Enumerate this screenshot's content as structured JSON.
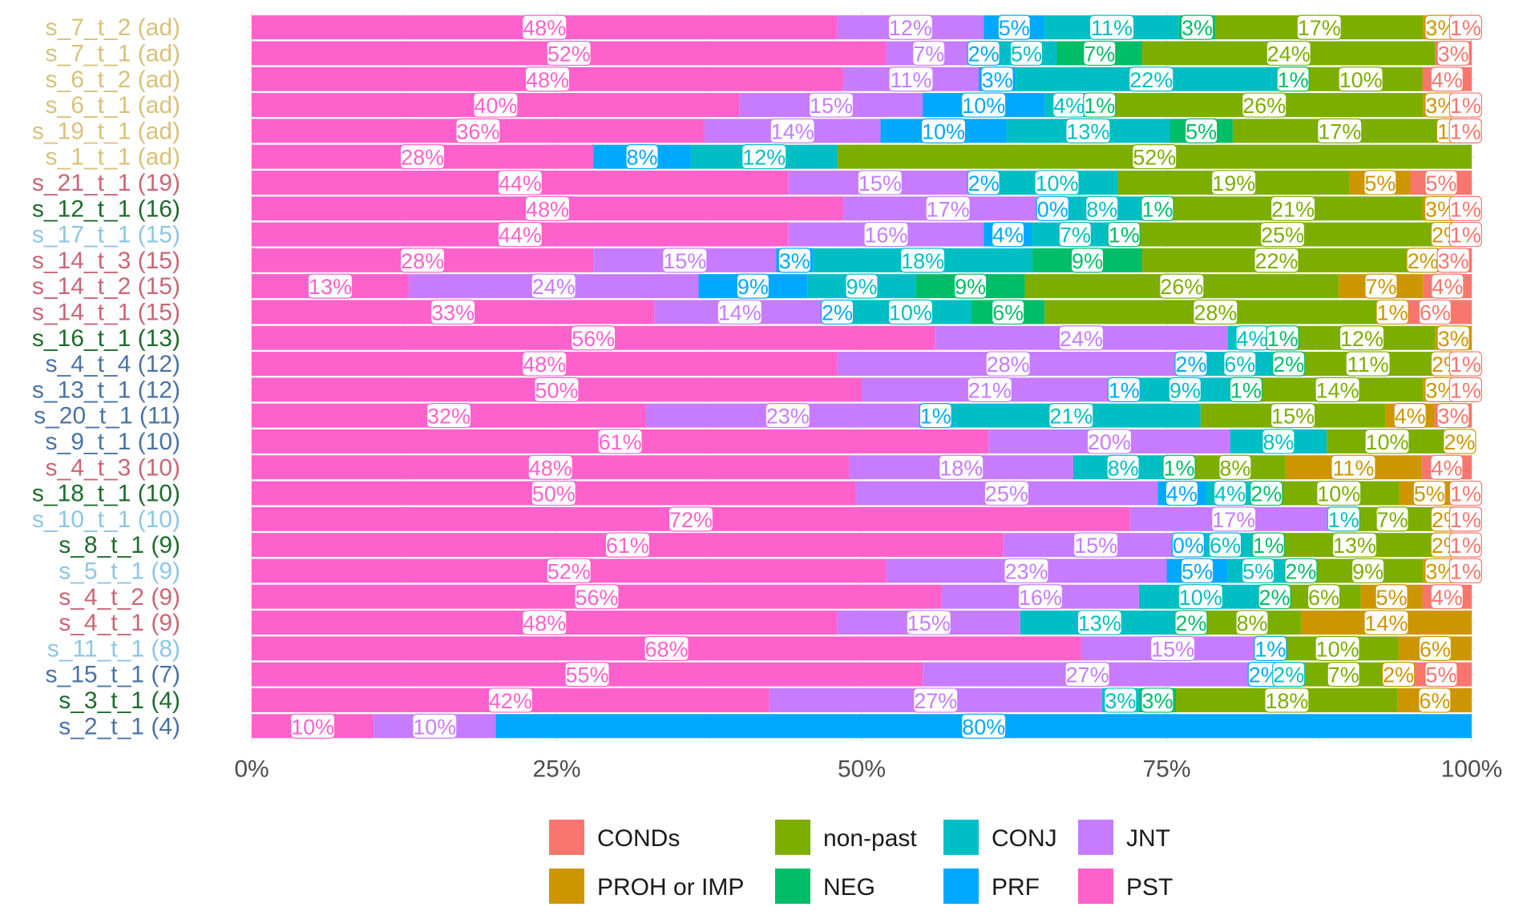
{
  "chart_data": {
    "type": "bar",
    "orientation": "horizontal",
    "stacked": true,
    "percent": true,
    "title": "",
    "xlabel": "",
    "ylabel": "",
    "xlim": [
      0,
      100
    ],
    "x_ticks": [
      "0%",
      "25%",
      "50%",
      "75%",
      "100%"
    ],
    "grid": true,
    "legend_position": "bottom",
    "series_order": [
      "PST",
      "JNT",
      "PRF",
      "CONJ",
      "NEG",
      "non-past",
      "PROH or IMP",
      "CONDs"
    ],
    "legend": [
      {
        "name": "CONDs",
        "color": "#F8766D"
      },
      {
        "name": "non-past",
        "color": "#7CAE00"
      },
      {
        "name": "CONJ",
        "color": "#00BFC4"
      },
      {
        "name": "JNT",
        "color": "#C77CFF"
      },
      {
        "name": "PROH or IMP",
        "color": "#CD9600"
      },
      {
        "name": "NEG",
        "color": "#00BE67"
      },
      {
        "name": "PRF",
        "color": "#00A9FF"
      },
      {
        "name": "PST",
        "color": "#FF61CC"
      }
    ],
    "series_colors": {
      "PST": "#FF61CC",
      "JNT": "#C77CFF",
      "PRF": "#00A9FF",
      "CONJ": "#00BFC4",
      "NEG": "#00BE67",
      "non-past": "#7CAE00",
      "PROH or IMP": "#CD9600",
      "CONDs": "#F8766D"
    },
    "category_colors": {
      "gold": "#D8C27A",
      "red": "#C96676",
      "green": "#1E6B2E",
      "lightblue": "#8DC6E6",
      "blue": "#4A73A6"
    },
    "rows": [
      {
        "label": "s_7_t_2 (ad)",
        "color": "gold",
        "values": [
          48,
          12,
          5,
          11,
          3,
          17,
          3,
          1
        ],
        "labels": [
          "48%",
          "12%",
          "5%",
          "11%",
          "3%",
          "17%",
          "3%",
          "1%"
        ]
      },
      {
        "label": "s_7_t_1 (ad)",
        "color": "gold",
        "values": [
          52,
          7,
          2,
          5,
          7,
          24,
          0,
          3
        ],
        "labels": [
          "52%",
          "7%",
          "2%",
          "5%",
          "7%",
          "24%",
          "",
          "3%"
        ]
      },
      {
        "label": "s_6_t_2 (ad)",
        "color": "gold",
        "values": [
          48,
          11,
          3,
          22,
          1,
          10,
          0,
          4
        ],
        "labels": [
          "48%",
          "11%",
          "3%",
          "22%",
          "1%",
          "10%",
          "",
          "4%"
        ]
      },
      {
        "label": "s_6_t_1 (ad)",
        "color": "gold",
        "values": [
          40,
          15,
          10,
          4,
          1,
          26,
          3,
          1
        ],
        "labels": [
          "40%",
          "15%",
          "10%",
          "4%",
          "1%",
          "26%",
          "3%",
          "1%"
        ]
      },
      {
        "label": "s_19_t_1 (ad)",
        "color": "gold",
        "values": [
          36,
          14,
          10,
          13,
          5,
          17,
          1,
          1
        ],
        "labels": [
          "36%",
          "14%",
          "10%",
          "13%",
          "5%",
          "17%",
          "1%",
          "1%"
        ]
      },
      {
        "label": "s_1_t_1 (ad)",
        "color": "gold",
        "values": [
          28,
          0,
          8,
          12,
          0,
          52,
          0,
          0
        ],
        "labels": [
          "28%",
          "",
          "8%",
          "12%",
          "",
          "52%",
          "",
          ""
        ]
      },
      {
        "label": "s_21_t_1 (19)",
        "color": "red",
        "values": [
          44,
          15,
          2,
          10,
          0,
          19,
          5,
          5
        ],
        "labels": [
          "44%",
          "15%",
          "2%",
          "10%",
          "",
          "19%",
          "5%",
          "5%"
        ]
      },
      {
        "label": "s_12_t_1 (16)",
        "color": "green",
        "values": [
          48,
          17,
          0,
          8,
          1,
          21,
          3,
          1
        ],
        "labels": [
          "48%",
          "17%",
          "0%",
          "8%",
          "1%",
          "21%",
          "3%",
          "1%"
        ]
      },
      {
        "label": "s_17_t_1 (15)",
        "color": "lightblue",
        "values": [
          44,
          16,
          4,
          7,
          1,
          25,
          2,
          1
        ],
        "labels": [
          "44%",
          "16%",
          "4%",
          "7%",
          "1%",
          "25%",
          "2%",
          "1%"
        ]
      },
      {
        "label": "s_14_t_3 (15)",
        "color": "red",
        "values": [
          28,
          15,
          3,
          18,
          9,
          22,
          2,
          3
        ],
        "labels": [
          "28%",
          "15%",
          "3%",
          "18%",
          "9%",
          "22%",
          "2%",
          "3%"
        ]
      },
      {
        "label": "s_14_t_2 (15)",
        "color": "red",
        "values": [
          13,
          24,
          9,
          9,
          9,
          26,
          7,
          4
        ],
        "labels": [
          "13%",
          "24%",
          "9%",
          "9%",
          "9%",
          "26%",
          "7%",
          "4%"
        ]
      },
      {
        "label": "s_14_t_1 (15)",
        "color": "red",
        "values": [
          33,
          14,
          2,
          10,
          6,
          28,
          1,
          6
        ],
        "labels": [
          "33%",
          "14%",
          "2%",
          "10%",
          "6%",
          "28%",
          "1%",
          "6%"
        ]
      },
      {
        "label": "s_16_t_1 (13)",
        "color": "green",
        "values": [
          56,
          24,
          0,
          4,
          1,
          12,
          3,
          0
        ],
        "labels": [
          "56%",
          "24%",
          "",
          "4%",
          "1%",
          "12%",
          "3%",
          ""
        ]
      },
      {
        "label": "s_4_t_4 (12)",
        "color": "blue",
        "values": [
          48,
          28,
          2,
          6,
          2,
          11,
          2,
          1
        ],
        "labels": [
          "48%",
          "28%",
          "2%",
          "6%",
          "2%",
          "11%",
          "2%",
          "1%"
        ]
      },
      {
        "label": "s_13_t_1 (12)",
        "color": "blue",
        "values": [
          50,
          21,
          1,
          9,
          1,
          14,
          3,
          1
        ],
        "labels": [
          "50%",
          "21%",
          "1%",
          "9%",
          "1%",
          "14%",
          "3%",
          "1%"
        ]
      },
      {
        "label": "s_20_t_1 (11)",
        "color": "blue",
        "values": [
          32,
          23,
          1,
          21,
          0,
          15,
          4,
          3
        ],
        "labels": [
          "32%",
          "23%",
          "1%",
          "21%",
          "",
          "15%",
          "4%",
          "3%"
        ]
      },
      {
        "label": "s_9_t_1 (10)",
        "color": "blue",
        "values": [
          61,
          20,
          0,
          8,
          0,
          10,
          2,
          0
        ],
        "labels": [
          "61%",
          "20%",
          "",
          "8%",
          "",
          "10%",
          "2%",
          ""
        ]
      },
      {
        "label": "s_4_t_3 (10)",
        "color": "red",
        "values": [
          48,
          18,
          0,
          8,
          1,
          8,
          11,
          4
        ],
        "labels": [
          "48%",
          "18%",
          "",
          "8%",
          "1%",
          "8%",
          "11%",
          "4%"
        ]
      },
      {
        "label": "s_18_t_1 (10)",
        "color": "green",
        "values": [
          50,
          25,
          4,
          4,
          2,
          10,
          5,
          1
        ],
        "labels": [
          "50%",
          "25%",
          "4%",
          "4%",
          "2%",
          "10%",
          "5%",
          "1%"
        ]
      },
      {
        "label": "s_10_t_1 (10)",
        "color": "lightblue",
        "values": [
          72,
          17,
          0,
          1,
          0,
          7,
          2,
          1
        ],
        "labels": [
          "72%",
          "17%",
          "",
          "1%",
          "",
          "7%",
          "2%",
          "1%"
        ]
      },
      {
        "label": "s_8_t_1 (9)",
        "color": "green",
        "values": [
          61,
          15,
          0,
          6,
          1,
          13,
          2,
          1
        ],
        "labels": [
          "61%",
          "15%",
          "0%",
          "6%",
          "1%",
          "13%",
          "2%",
          "1%"
        ]
      },
      {
        "label": "s_5_t_1 (9)",
        "color": "lightblue",
        "values": [
          52,
          23,
          5,
          5,
          2,
          9,
          3,
          1
        ],
        "labels": [
          "52%",
          "23%",
          "5%",
          "5%",
          "2%",
          "9%",
          "3%",
          "1%"
        ]
      },
      {
        "label": "s_4_t_2 (9)",
        "color": "red",
        "values": [
          56,
          16,
          0,
          10,
          2,
          6,
          5,
          4
        ],
        "labels": [
          "56%",
          "16%",
          "",
          "10%",
          "2%",
          "6%",
          "5%",
          "4%"
        ]
      },
      {
        "label": "s_4_t_1 (9)",
        "color": "red",
        "values": [
          48,
          15,
          0,
          13,
          2,
          8,
          14,
          0
        ],
        "labels": [
          "48%",
          "15%",
          "",
          "13%",
          "2%",
          "8%",
          "14%",
          ""
        ]
      },
      {
        "label": "s_11_t_1 (8)",
        "color": "lightblue",
        "values": [
          68,
          15,
          1,
          0,
          0,
          10,
          6,
          0
        ],
        "labels": [
          "68%",
          "15%",
          "1%",
          "",
          "",
          "10%",
          "6%",
          ""
        ]
      },
      {
        "label": "s_15_t_1 (7)",
        "color": "blue",
        "values": [
          55,
          27,
          2,
          2,
          0,
          7,
          2,
          5
        ],
        "labels": [
          "55%",
          "27%",
          "2%",
          "2%",
          "",
          "7%",
          "2%",
          "5%"
        ]
      },
      {
        "label": "s_3_t_1 (4)",
        "color": "green",
        "values": [
          42,
          27,
          0,
          3,
          3,
          18,
          6,
          0
        ],
        "labels": [
          "42%",
          "27%",
          "",
          "3%",
          "3%",
          "18%",
          "6%",
          ""
        ]
      },
      {
        "label": "s_2_t_1 (4)",
        "color": "blue",
        "values": [
          10,
          10,
          80,
          0,
          0,
          0,
          0,
          0
        ],
        "labels": [
          "10%",
          "10%",
          "80%",
          "",
          "",
          "",
          "",
          ""
        ]
      }
    ]
  }
}
